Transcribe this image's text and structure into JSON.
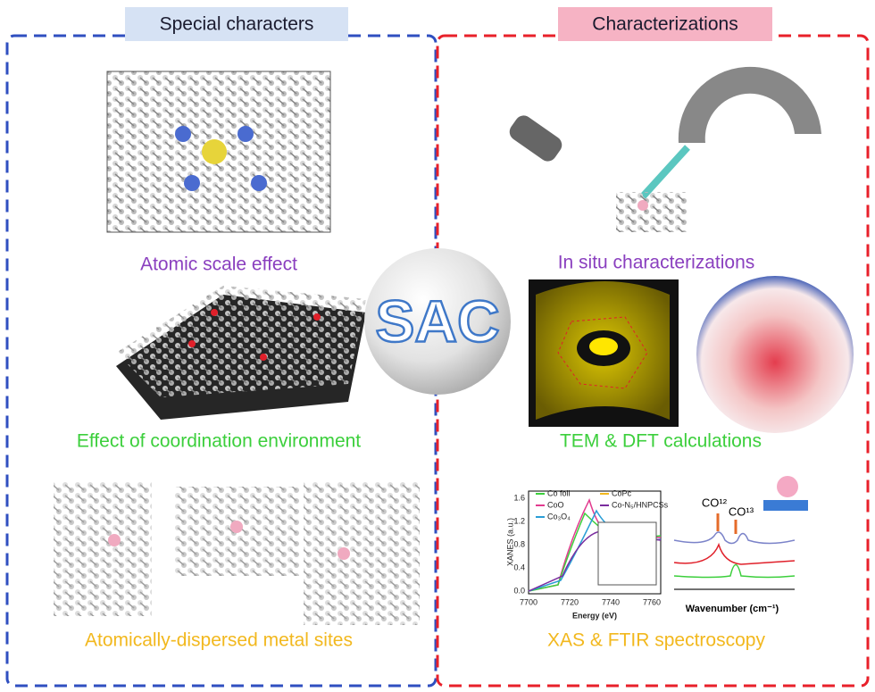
{
  "left_panel": {
    "title": "Special characters",
    "items": [
      "Atomic scale effect",
      "Effect of coordination environment",
      "Atomically-dispersed metal sites"
    ]
  },
  "right_panel": {
    "title": "Characterizations",
    "items": [
      "In situ characterizations",
      "TEM & DFT calculations",
      "XAS & FTIR spectroscopy"
    ]
  },
  "center": {
    "label": "SAC"
  },
  "xas_plot": {
    "y_label": "XANES (a.u.)",
    "x_label": "Energy (eV)",
    "yticks": [
      "1.6",
      "1.2",
      "0.8",
      "0.4",
      "0.0"
    ],
    "xticks": [
      "7700",
      "7720",
      "7740",
      "7760"
    ],
    "legend": [
      "Co foil",
      "CoO",
      "Co₃O₄",
      "CoPc",
      "Co-N₅/HNPCSs"
    ]
  },
  "ftir_plot": {
    "peaks": [
      "CO¹²",
      "CO¹³"
    ],
    "x_label": "Wavenumber (cm⁻¹)"
  }
}
